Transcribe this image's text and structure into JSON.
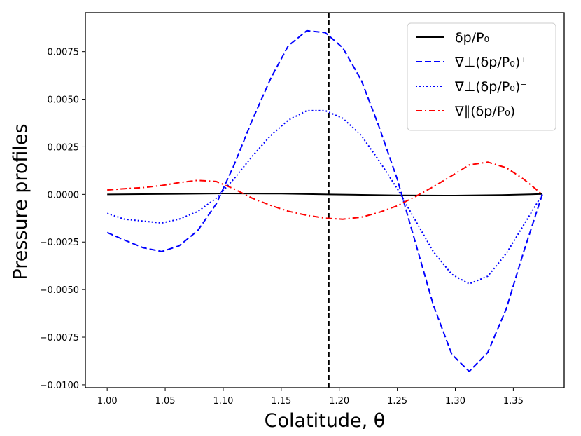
{
  "chart_data": {
    "type": "line",
    "title": "",
    "xlabel": "Colatitude, θ",
    "ylabel": "Pressure profiles",
    "xlim": [
      0.9812,
      1.3938
    ],
    "ylim": [
      -0.01015,
      0.00955
    ],
    "xticks": [
      1.0,
      1.05,
      1.1,
      1.15,
      1.2,
      1.25,
      1.3,
      1.35
    ],
    "xtick_labels": [
      "1.00",
      "1.05",
      "1.10",
      "1.15",
      "1.20",
      "1.25",
      "1.30",
      "1.35"
    ],
    "yticks": [
      0.0075,
      0.005,
      0.0025,
      0.0,
      -0.0025,
      -0.005,
      -0.0075,
      -0.01
    ],
    "ytick_labels": [
      "0.0075",
      "0.0050",
      "0.0025",
      "0.0000",
      "−0.0025",
      "−0.0050",
      "−0.0075",
      "−0.0100"
    ],
    "vline_x": 1.191,
    "legend_position": "upper right",
    "series": [
      {
        "name": "δp/P₀",
        "color": "#000000",
        "dash": "solid",
        "x": [
          1.0,
          1.05,
          1.1,
          1.15,
          1.191,
          1.25,
          1.3,
          1.34,
          1.375
        ],
        "y": [
          0.0,
          2e-05,
          5e-05,
          4e-05,
          0.0,
          -5e-05,
          -6e-05,
          -3e-05,
          2e-05
        ]
      },
      {
        "name": "∇⊥(δp/P₀)⁺",
        "color": "#0000ff",
        "dash": "dashed",
        "x": [
          1.0,
          1.015,
          1.031,
          1.047,
          1.062,
          1.078,
          1.094,
          1.109,
          1.125,
          1.141,
          1.156,
          1.172,
          1.188,
          1.203,
          1.219,
          1.234,
          1.25,
          1.266,
          1.281,
          1.297,
          1.312,
          1.328,
          1.344,
          1.359,
          1.375
        ],
        "y": [
          -0.002,
          -0.0024,
          -0.0028,
          -0.003,
          -0.0027,
          -0.0019,
          -0.0005,
          0.0015,
          0.0039,
          0.0061,
          0.0078,
          0.0086,
          0.0085,
          0.0077,
          0.006,
          0.0036,
          0.0008,
          -0.0026,
          -0.0058,
          -0.0084,
          -0.0093,
          -0.0083,
          -0.006,
          -0.003,
          0.0
        ]
      },
      {
        "name": "∇⊥(δp/P₀)⁻",
        "color": "#0000ff",
        "dash": "dotted",
        "x": [
          1.0,
          1.015,
          1.031,
          1.047,
          1.062,
          1.078,
          1.094,
          1.109,
          1.125,
          1.141,
          1.156,
          1.172,
          1.188,
          1.203,
          1.219,
          1.234,
          1.25,
          1.266,
          1.281,
          1.297,
          1.312,
          1.328,
          1.344,
          1.359,
          1.375
        ],
        "y": [
          -0.001,
          -0.0013,
          -0.0014,
          -0.0015,
          -0.0013,
          -0.0009,
          -0.0002,
          0.0008,
          0.002,
          0.0031,
          0.0039,
          0.0044,
          0.0044,
          0.004,
          0.0031,
          0.0018,
          0.0003,
          -0.0014,
          -0.003,
          -0.0042,
          -0.0047,
          -0.0043,
          -0.0031,
          -0.0016,
          0.0
        ]
      },
      {
        "name": "∇∥(δp/P₀)",
        "color": "#ff0000",
        "dash": "dashdot",
        "x": [
          1.0,
          1.015,
          1.031,
          1.047,
          1.062,
          1.078,
          1.094,
          1.109,
          1.125,
          1.141,
          1.156,
          1.172,
          1.188,
          1.203,
          1.219,
          1.234,
          1.25,
          1.266,
          1.281,
          1.297,
          1.312,
          1.328,
          1.344,
          1.359,
          1.375
        ],
        "y": [
          0.00023,
          0.0003,
          0.00036,
          0.00047,
          0.00062,
          0.00074,
          0.00068,
          0.0003,
          -0.0002,
          -0.00058,
          -0.00088,
          -0.0011,
          -0.00125,
          -0.0013,
          -0.0012,
          -0.00095,
          -0.0006,
          -0.0001,
          0.0004,
          0.00098,
          0.00155,
          0.0017,
          0.0014,
          0.0008,
          0.0
        ]
      }
    ]
  }
}
